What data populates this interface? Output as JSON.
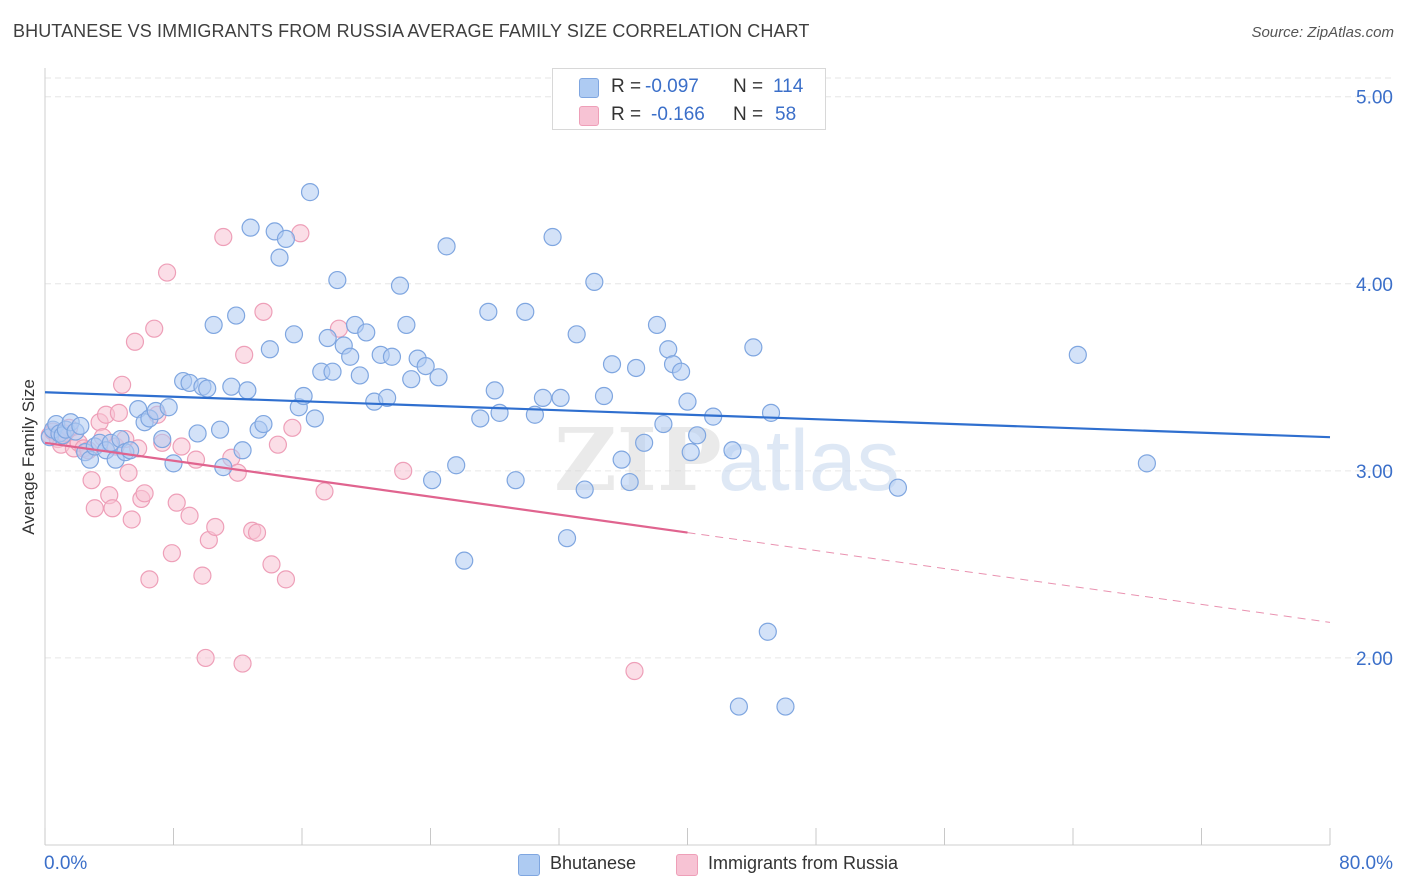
{
  "title": "BHUTANESE VS IMMIGRANTS FROM RUSSIA AVERAGE FAMILY SIZE CORRELATION CHART",
  "source": "Source: ZipAtlas.com",
  "legend_top": {
    "rows": [
      {
        "r_label": "R =",
        "r_value": "-0.097",
        "n_label": "N =",
        "n_value": "114"
      },
      {
        "r_label": "R =",
        "r_value": "-0.166",
        "n_label": "N =",
        "n_value": "58"
      }
    ]
  },
  "legend_bottom": [
    "Bhutanese",
    "Immigrants from Russia"
  ],
  "watermark": {
    "zip": "ZIP",
    "atlas": "atlas"
  },
  "colors": {
    "blue_fill": "#aecbf2",
    "blue_stroke": "#7fa6e0",
    "blue_line": "#2f6fcf",
    "pink_fill": "#f7c3d4",
    "pink_stroke": "#ee9fb8",
    "pink_line": "#e0648f",
    "tick_label": "#3b6fc9",
    "grid": "#e6e6e6"
  },
  "chart_data": {
    "type": "scatter",
    "xlabel": "",
    "ylabel": "Average Family Size",
    "x_tick_labels": [
      "0.0%",
      "80.0%"
    ],
    "y_tick_labels": [
      "2.00",
      "3.00",
      "4.00",
      "5.00"
    ],
    "xlim": [
      0,
      80
    ],
    "ylim": [
      1.0,
      5.1
    ],
    "y_ticks": [
      2,
      3,
      4,
      5
    ],
    "grid": true,
    "legend_position": "top-center",
    "series": [
      {
        "name": "Bhutanese",
        "color": "#aecbf2",
        "trend": {
          "x0": 0,
          "y0": 3.42,
          "x1": 80,
          "y1": 3.18,
          "dashed_from": null
        },
        "points": [
          [
            0.3,
            3.18
          ],
          [
            0.5,
            3.22
          ],
          [
            0.7,
            3.25
          ],
          [
            0.9,
            3.2
          ],
          [
            1.1,
            3.19
          ],
          [
            1.3,
            3.22
          ],
          [
            1.6,
            3.26
          ],
          [
            1.9,
            3.21
          ],
          [
            2.2,
            3.24
          ],
          [
            2.5,
            3.1
          ],
          [
            2.8,
            3.06
          ],
          [
            3.1,
            3.13
          ],
          [
            3.4,
            3.15
          ],
          [
            3.8,
            3.11
          ],
          [
            4.1,
            3.15
          ],
          [
            4.4,
            3.06
          ],
          [
            4.7,
            3.17
          ],
          [
            5.0,
            3.1
          ],
          [
            5.3,
            3.11
          ],
          [
            5.8,
            3.33
          ],
          [
            6.2,
            3.26
          ],
          [
            6.5,
            3.28
          ],
          [
            6.9,
            3.32
          ],
          [
            7.3,
            3.17
          ],
          [
            7.7,
            3.34
          ],
          [
            8.0,
            3.04
          ],
          [
            8.6,
            3.48
          ],
          [
            9.0,
            3.47
          ],
          [
            9.5,
            3.2
          ],
          [
            9.8,
            3.45
          ],
          [
            10.1,
            3.44
          ],
          [
            10.5,
            3.78
          ],
          [
            10.9,
            3.22
          ],
          [
            11.1,
            3.02
          ],
          [
            11.6,
            3.45
          ],
          [
            11.9,
            3.83
          ],
          [
            12.3,
            3.11
          ],
          [
            12.6,
            3.43
          ],
          [
            12.8,
            4.3
          ],
          [
            13.3,
            3.22
          ],
          [
            13.6,
            3.25
          ],
          [
            14.0,
            3.65
          ],
          [
            14.3,
            4.28
          ],
          [
            14.6,
            4.14
          ],
          [
            15.0,
            4.24
          ],
          [
            15.5,
            3.73
          ],
          [
            15.8,
            3.34
          ],
          [
            16.1,
            3.4
          ],
          [
            16.5,
            4.49
          ],
          [
            16.8,
            3.28
          ],
          [
            17.2,
            3.53
          ],
          [
            17.6,
            3.71
          ],
          [
            17.9,
            3.53
          ],
          [
            18.2,
            4.02
          ],
          [
            18.6,
            3.67
          ],
          [
            19.0,
            3.61
          ],
          [
            19.3,
            3.78
          ],
          [
            19.6,
            3.51
          ],
          [
            20.0,
            3.74
          ],
          [
            20.5,
            3.37
          ],
          [
            20.9,
            3.62
          ],
          [
            21.3,
            3.39
          ],
          [
            21.6,
            3.61
          ],
          [
            22.1,
            3.99
          ],
          [
            22.5,
            3.78
          ],
          [
            22.8,
            3.49
          ],
          [
            23.2,
            3.6
          ],
          [
            23.7,
            3.56
          ],
          [
            24.1,
            2.95
          ],
          [
            24.5,
            3.5
          ],
          [
            25.0,
            4.2
          ],
          [
            25.6,
            3.03
          ],
          [
            26.1,
            2.52
          ],
          [
            27.1,
            3.28
          ],
          [
            27.6,
            3.85
          ],
          [
            28.0,
            3.43
          ],
          [
            28.3,
            3.31
          ],
          [
            29.3,
            2.95
          ],
          [
            29.9,
            3.85
          ],
          [
            30.5,
            3.3
          ],
          [
            31.0,
            3.39
          ],
          [
            31.6,
            4.25
          ],
          [
            32.1,
            3.39
          ],
          [
            32.5,
            2.64
          ],
          [
            33.1,
            3.73
          ],
          [
            33.6,
            2.9
          ],
          [
            34.2,
            4.01
          ],
          [
            34.8,
            3.4
          ],
          [
            35.3,
            3.57
          ],
          [
            35.9,
            3.06
          ],
          [
            36.4,
            2.94
          ],
          [
            36.8,
            3.55
          ],
          [
            37.3,
            3.15
          ],
          [
            38.1,
            3.78
          ],
          [
            38.5,
            3.25
          ],
          [
            38.8,
            3.65
          ],
          [
            39.1,
            3.57
          ],
          [
            39.6,
            3.53
          ],
          [
            40.0,
            3.37
          ],
          [
            40.2,
            3.1
          ],
          [
            40.6,
            3.19
          ],
          [
            41.6,
            3.29
          ],
          [
            42.8,
            3.11
          ],
          [
            43.2,
            1.74
          ],
          [
            44.1,
            3.66
          ],
          [
            45.2,
            3.31
          ],
          [
            45.0,
            2.14
          ],
          [
            46.1,
            1.74
          ],
          [
            53.1,
            2.91
          ],
          [
            64.3,
            3.62
          ],
          [
            68.6,
            3.04
          ]
        ]
      },
      {
        "name": "Immigrants from Russia",
        "color": "#f7c3d4",
        "trend": {
          "x0": 0,
          "y0": 3.15,
          "x1": 80,
          "y1": 2.19,
          "dashed_from": 40
        },
        "points": [
          [
            0.3,
            3.19
          ],
          [
            0.5,
            3.21
          ],
          [
            0.8,
            3.17
          ],
          [
            1.0,
            3.14
          ],
          [
            1.2,
            3.2
          ],
          [
            1.5,
            3.23
          ],
          [
            1.8,
            3.12
          ],
          [
            2.1,
            3.15
          ],
          [
            2.4,
            3.12
          ],
          [
            2.7,
            3.11
          ],
          [
            2.9,
            2.95
          ],
          [
            3.1,
            2.8
          ],
          [
            3.4,
            3.26
          ],
          [
            3.6,
            3.18
          ],
          [
            3.8,
            3.3
          ],
          [
            4.0,
            2.87
          ],
          [
            4.2,
            2.8
          ],
          [
            4.4,
            3.13
          ],
          [
            4.6,
            3.31
          ],
          [
            4.8,
            3.46
          ],
          [
            5.0,
            3.17
          ],
          [
            5.2,
            2.99
          ],
          [
            5.4,
            2.74
          ],
          [
            5.6,
            3.69
          ],
          [
            5.8,
            3.12
          ],
          [
            6.0,
            2.85
          ],
          [
            6.2,
            2.88
          ],
          [
            6.5,
            2.42
          ],
          [
            6.8,
            3.76
          ],
          [
            7.0,
            3.3
          ],
          [
            7.3,
            3.15
          ],
          [
            7.6,
            4.06
          ],
          [
            7.9,
            2.56
          ],
          [
            8.2,
            2.83
          ],
          [
            8.5,
            3.13
          ],
          [
            9.0,
            2.76
          ],
          [
            9.4,
            3.06
          ],
          [
            9.8,
            2.44
          ],
          [
            10.2,
            2.63
          ],
          [
            10.6,
            2.7
          ],
          [
            11.1,
            4.25
          ],
          [
            11.6,
            3.07
          ],
          [
            12.0,
            2.99
          ],
          [
            12.4,
            3.62
          ],
          [
            12.9,
            2.68
          ],
          [
            13.2,
            2.67
          ],
          [
            13.6,
            3.85
          ],
          [
            14.1,
            2.5
          ],
          [
            14.5,
            3.14
          ],
          [
            15.0,
            2.42
          ],
          [
            15.4,
            3.23
          ],
          [
            15.9,
            4.27
          ],
          [
            17.4,
            2.89
          ],
          [
            18.3,
            3.76
          ],
          [
            22.3,
            3.0
          ],
          [
            36.7,
            1.93
          ],
          [
            10.0,
            2.0
          ],
          [
            12.3,
            1.97
          ]
        ]
      }
    ]
  }
}
